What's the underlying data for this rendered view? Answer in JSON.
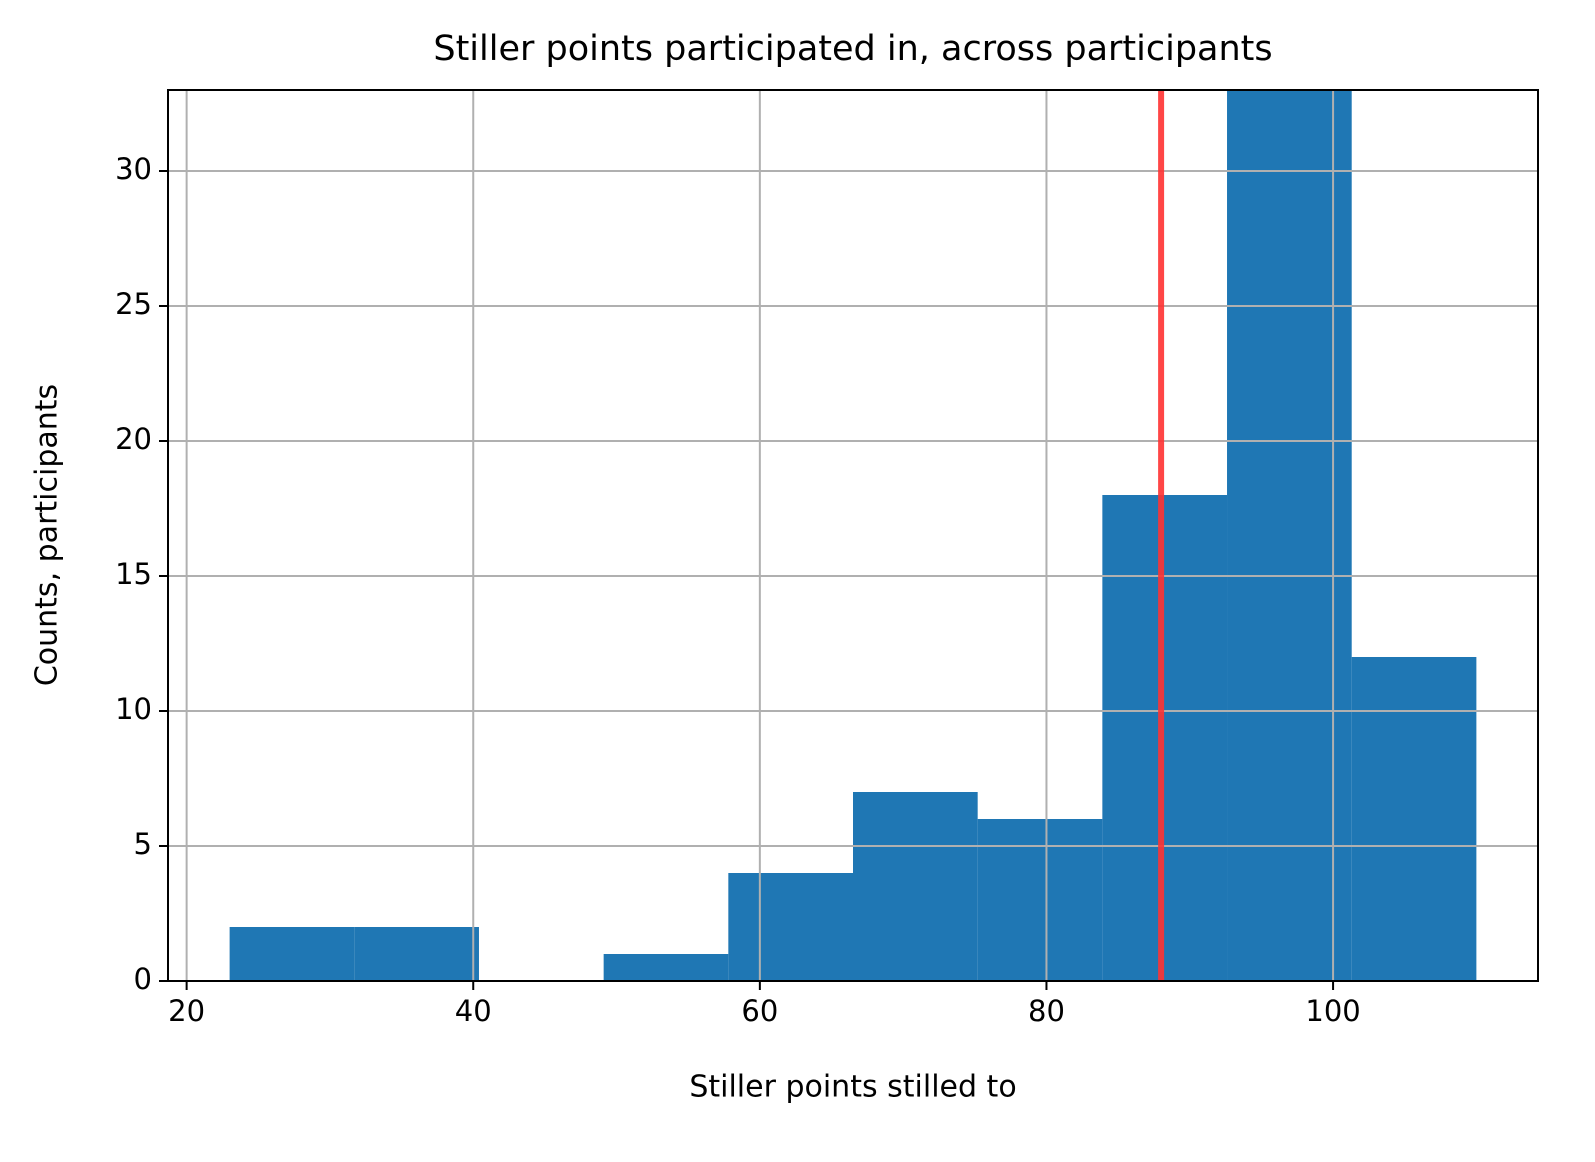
{
  "chart_data": {
    "type": "histogram",
    "title": "Stiller points participated in, across participants",
    "xlabel": "Stiller points stilled to",
    "ylabel": "Counts, participants",
    "bins": [
      23.0,
      31.7,
      40.4,
      49.1,
      57.8,
      66.5,
      75.2,
      83.9,
      92.6,
      101.3,
      110.0
    ],
    "values": [
      2,
      2,
      0,
      1,
      4,
      7,
      6,
      18,
      34,
      12
    ],
    "color": "#1f77b4",
    "xlim": [
      18.7,
      114.3
    ],
    "xticks": [
      20,
      40,
      60,
      80,
      100
    ],
    "ylim": [
      0,
      33
    ],
    "yticks": [
      0,
      5,
      10,
      15,
      20,
      25,
      30
    ],
    "grid": true,
    "vline": {
      "x": 88,
      "color": "#ff3333"
    }
  }
}
